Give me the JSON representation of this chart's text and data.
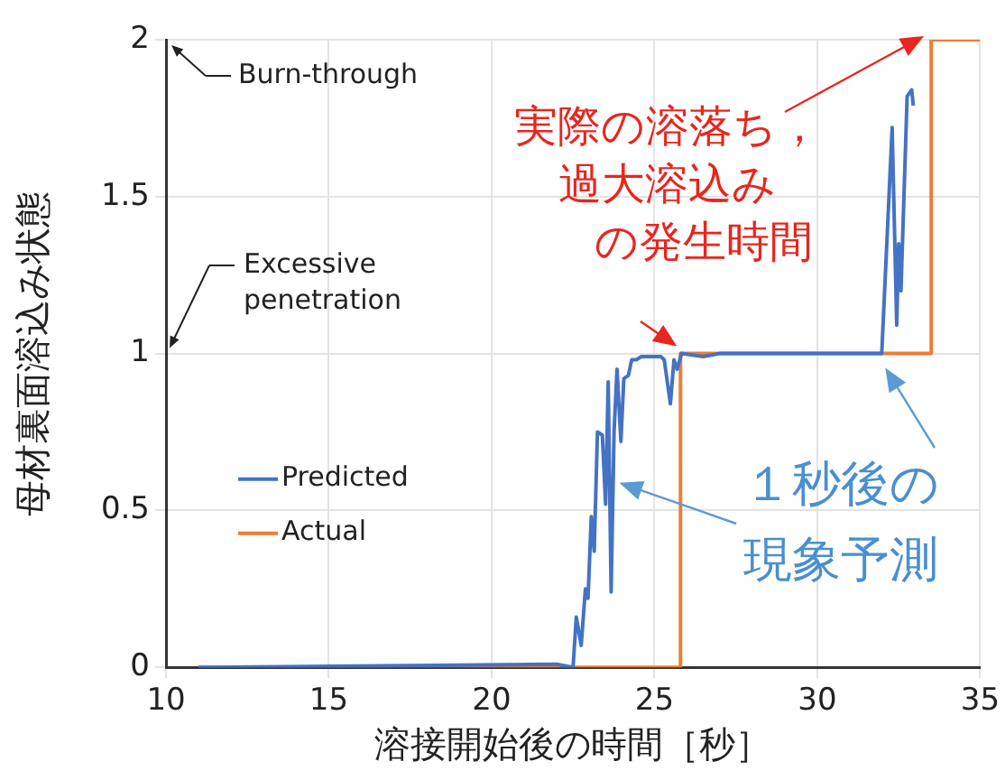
{
  "chart_data": {
    "type": "line",
    "xlabel": "溶接開始後の時間［秒］",
    "ylabel": "母材裏面溶込み状態",
    "xlim": [
      10,
      35
    ],
    "xticks": [
      10,
      15,
      20,
      25,
      30,
      35
    ],
    "ylim": [
      0,
      2
    ],
    "yticks": [
      0,
      0.5,
      1,
      1.5,
      2
    ],
    "grid": true,
    "legend": "left",
    "marker": "none",
    "line_style": "solid",
    "series": [
      {
        "name": "Predicted",
        "color": "#4472c4",
        "x": [
          11,
          22,
          22.5,
          22.6,
          22.75,
          22.88,
          22.96,
          23.06,
          23.15,
          23.25,
          23.4,
          23.5,
          23.58,
          23.67,
          23.76,
          23.85,
          23.97,
          24.06,
          24.2,
          24.3,
          24.44,
          24.6,
          25.2,
          25.3,
          25.49,
          25.6,
          25.7,
          25.83,
          26.5,
          27,
          28,
          29,
          30,
          31,
          31.7,
          31.98,
          32.3,
          32.44,
          32.5,
          32.57,
          32.76,
          32.9,
          32.95
        ],
        "values": [
          0,
          0.01,
          0,
          0.16,
          0.07,
          0.25,
          0.22,
          0.48,
          0.37,
          0.75,
          0.74,
          0.52,
          0.91,
          0.24,
          0.75,
          0.95,
          0.72,
          0.92,
          0.93,
          0.98,
          0.98,
          0.99,
          0.99,
          0.98,
          0.84,
          0.98,
          0.95,
          1,
          0.99,
          1,
          1,
          1,
          1,
          1,
          1,
          1,
          1.72,
          1.09,
          1.35,
          1.2,
          1.82,
          1.84,
          1.79
        ]
      },
      {
        "name": "Actual",
        "color": "#ed7d31",
        "x": [
          11,
          25.8,
          25.8,
          33.5,
          33.5,
          35
        ],
        "values": [
          0,
          0,
          1,
          1,
          2,
          2
        ]
      }
    ],
    "annotations": [
      "Burn-through",
      "Excessive penetration",
      {
        "text": "実際の溶落ち，過大溶込みの発生時間",
        "x": 25.8,
        "y": 1
      },
      {
        "text": "１秒後の現象予測",
        "x": 23.7,
        "y": 0.6
      }
    ]
  }
}
